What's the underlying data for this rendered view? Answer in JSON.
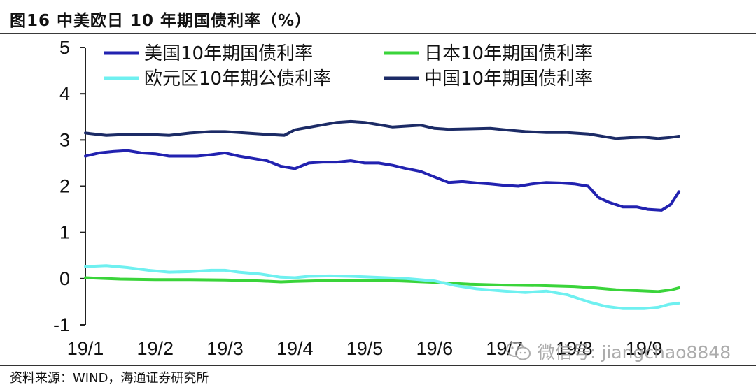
{
  "title": "图16 中美欧日 10 年期国债利率（%）",
  "source": "资料来源：WIND，海通证券研究所",
  "watermark": "微信号: jiangchao8848",
  "chart_data": {
    "type": "line",
    "xlabel": "",
    "ylabel": "",
    "ylim": [
      -1,
      5
    ],
    "yticks": [
      "5",
      "4",
      "3",
      "2",
      "1",
      "0",
      "-1"
    ],
    "xlim": [
      0,
      8.5
    ],
    "xticks": [
      {
        "label": "19/1",
        "x": 0
      },
      {
        "label": "19/2",
        "x": 1
      },
      {
        "label": "19/3",
        "x": 2
      },
      {
        "label": "19/4",
        "x": 3
      },
      {
        "label": "19/5",
        "x": 4
      },
      {
        "label": "19/6",
        "x": 5
      },
      {
        "label": "19/7",
        "x": 6
      },
      {
        "label": "19/8",
        "x": 7
      },
      {
        "label": "19/9",
        "x": 8
      }
    ],
    "grid": false,
    "legend_position": "top",
    "series": [
      {
        "name": "美国10年期国债利率",
        "color": "#2222b0",
        "points": [
          [
            0,
            2.65
          ],
          [
            0.2,
            2.72
          ],
          [
            0.4,
            2.75
          ],
          [
            0.6,
            2.77
          ],
          [
            0.8,
            2.72
          ],
          [
            1.0,
            2.7
          ],
          [
            1.2,
            2.65
          ],
          [
            1.4,
            2.65
          ],
          [
            1.6,
            2.65
          ],
          [
            1.8,
            2.68
          ],
          [
            2.0,
            2.72
          ],
          [
            2.2,
            2.65
          ],
          [
            2.4,
            2.6
          ],
          [
            2.6,
            2.55
          ],
          [
            2.8,
            2.43
          ],
          [
            3.0,
            2.38
          ],
          [
            3.2,
            2.5
          ],
          [
            3.4,
            2.52
          ],
          [
            3.6,
            2.52
          ],
          [
            3.8,
            2.55
          ],
          [
            4.0,
            2.5
          ],
          [
            4.2,
            2.5
          ],
          [
            4.4,
            2.45
          ],
          [
            4.6,
            2.38
          ],
          [
            4.8,
            2.32
          ],
          [
            5.0,
            2.2
          ],
          [
            5.2,
            2.08
          ],
          [
            5.4,
            2.1
          ],
          [
            5.6,
            2.07
          ],
          [
            5.8,
            2.05
          ],
          [
            6.0,
            2.02
          ],
          [
            6.2,
            2.0
          ],
          [
            6.4,
            2.05
          ],
          [
            6.6,
            2.08
          ],
          [
            6.8,
            2.07
          ],
          [
            7.0,
            2.05
          ],
          [
            7.2,
            2.0
          ],
          [
            7.35,
            1.75
          ],
          [
            7.5,
            1.65
          ],
          [
            7.7,
            1.55
          ],
          [
            7.9,
            1.55
          ],
          [
            8.05,
            1.5
          ],
          [
            8.25,
            1.48
          ],
          [
            8.38,
            1.6
          ],
          [
            8.5,
            1.88
          ]
        ]
      },
      {
        "name": "日本10年期国债利率",
        "color": "#3ad43a",
        "points": [
          [
            0,
            0.02
          ],
          [
            0.5,
            -0.01
          ],
          [
            1.0,
            -0.02
          ],
          [
            1.5,
            -0.02
          ],
          [
            2.0,
            -0.03
          ],
          [
            2.5,
            -0.05
          ],
          [
            2.8,
            -0.07
          ],
          [
            3.0,
            -0.06
          ],
          [
            3.5,
            -0.04
          ],
          [
            4.0,
            -0.04
          ],
          [
            4.5,
            -0.05
          ],
          [
            5.0,
            -0.08
          ],
          [
            5.5,
            -0.12
          ],
          [
            6.0,
            -0.14
          ],
          [
            6.5,
            -0.15
          ],
          [
            7.0,
            -0.17
          ],
          [
            7.3,
            -0.2
          ],
          [
            7.6,
            -0.24
          ],
          [
            7.9,
            -0.26
          ],
          [
            8.2,
            -0.28
          ],
          [
            8.4,
            -0.24
          ],
          [
            8.5,
            -0.2
          ]
        ]
      },
      {
        "name": "欧元区10年期公债利率",
        "color": "#6ff0f0",
        "points": [
          [
            0,
            0.26
          ],
          [
            0.3,
            0.28
          ],
          [
            0.6,
            0.24
          ],
          [
            0.9,
            0.18
          ],
          [
            1.2,
            0.14
          ],
          [
            1.5,
            0.15
          ],
          [
            1.8,
            0.18
          ],
          [
            2.0,
            0.18
          ],
          [
            2.2,
            0.14
          ],
          [
            2.5,
            0.1
          ],
          [
            2.8,
            0.03
          ],
          [
            3.0,
            0.02
          ],
          [
            3.2,
            0.05
          ],
          [
            3.5,
            0.06
          ],
          [
            3.8,
            0.05
          ],
          [
            4.0,
            0.04
          ],
          [
            4.3,
            0.02
          ],
          [
            4.6,
            0.0
          ],
          [
            5.0,
            -0.05
          ],
          [
            5.3,
            -0.15
          ],
          [
            5.6,
            -0.22
          ],
          [
            6.0,
            -0.27
          ],
          [
            6.3,
            -0.3
          ],
          [
            6.6,
            -0.27
          ],
          [
            6.9,
            -0.35
          ],
          [
            7.2,
            -0.5
          ],
          [
            7.45,
            -0.6
          ],
          [
            7.7,
            -0.65
          ],
          [
            8.0,
            -0.65
          ],
          [
            8.2,
            -0.62
          ],
          [
            8.35,
            -0.56
          ],
          [
            8.5,
            -0.53
          ]
        ]
      },
      {
        "name": "中国10年期国债利率",
        "color": "#1c2b66",
        "points": [
          [
            0,
            3.15
          ],
          [
            0.3,
            3.1
          ],
          [
            0.6,
            3.12
          ],
          [
            0.9,
            3.12
          ],
          [
            1.2,
            3.1
          ],
          [
            1.5,
            3.15
          ],
          [
            1.8,
            3.18
          ],
          [
            2.0,
            3.18
          ],
          [
            2.3,
            3.15
          ],
          [
            2.6,
            3.12
          ],
          [
            2.85,
            3.1
          ],
          [
            3.0,
            3.22
          ],
          [
            3.3,
            3.3
          ],
          [
            3.6,
            3.38
          ],
          [
            3.8,
            3.4
          ],
          [
            4.0,
            3.38
          ],
          [
            4.2,
            3.33
          ],
          [
            4.4,
            3.28
          ],
          [
            4.6,
            3.3
          ],
          [
            4.8,
            3.32
          ],
          [
            5.0,
            3.25
          ],
          [
            5.2,
            3.23
          ],
          [
            5.5,
            3.24
          ],
          [
            5.8,
            3.25
          ],
          [
            6.0,
            3.22
          ],
          [
            6.3,
            3.18
          ],
          [
            6.6,
            3.16
          ],
          [
            6.9,
            3.16
          ],
          [
            7.2,
            3.13
          ],
          [
            7.4,
            3.08
          ],
          [
            7.6,
            3.03
          ],
          [
            7.8,
            3.05
          ],
          [
            8.0,
            3.06
          ],
          [
            8.2,
            3.03
          ],
          [
            8.35,
            3.05
          ],
          [
            8.5,
            3.08
          ]
        ]
      }
    ]
  }
}
